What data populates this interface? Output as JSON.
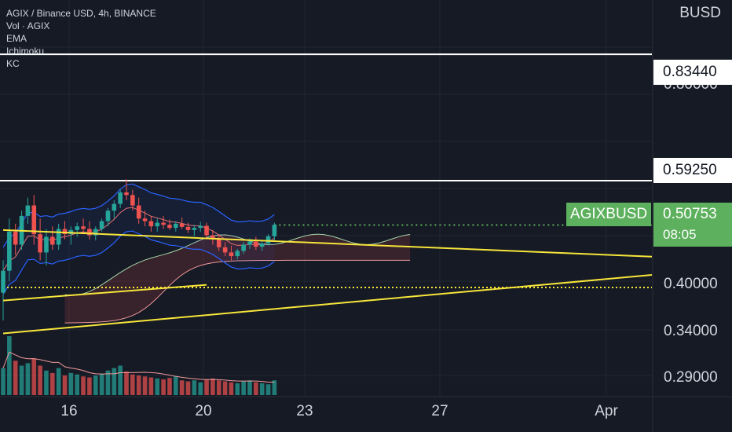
{
  "legend": {
    "title": "AGIX / Binance USD, 4h, BINANCE",
    "indicators": [
      "Vol · AGIX",
      "EMA",
      "Ichimoku",
      "KC"
    ]
  },
  "chart_data": {
    "type": "candlestick",
    "currency": "BUSD",
    "symbol": "AGIXBUSD",
    "last_price": "0.50753",
    "countdown": "08:05",
    "price_ticks": [
      {
        "value": 0.8,
        "label": "0.80000"
      },
      {
        "value": 0.4,
        "label": "0.40000"
      },
      {
        "value": 0.34,
        "label": "0.34000"
      },
      {
        "value": 0.29,
        "label": "0.29000"
      }
    ],
    "time_ticks": [
      {
        "bar": 10,
        "label": "16"
      },
      {
        "bar": 34,
        "label": "20"
      },
      {
        "bar": 52,
        "label": "23"
      },
      {
        "bar": 76,
        "label": "27"
      },
      {
        "bar": 106,
        "label": "Apr"
      }
    ],
    "horizontal_levels": [
      {
        "value": 0.8344,
        "label": "0.83440",
        "color": "#ffffff"
      },
      {
        "value": 0.5925,
        "label": "0.59250",
        "color": "#ffffff"
      }
    ],
    "support_level": {
      "value": 0.388,
      "from_bar": 0,
      "to_bar": 120,
      "color": "#f7e63a"
    },
    "ichimoku_hline": {
      "value": 0.3925,
      "from_bar": 0,
      "to_bar": 33,
      "color": "#f7e63a"
    },
    "trendlines": [
      {
        "from": [
          0,
          0.498
        ],
        "to": [
          120,
          0.447
        ],
        "color": "#f7e63a"
      },
      {
        "from": [
          0,
          0.3
        ],
        "to": [
          120,
          0.412
        ],
        "color": "#f7e63a"
      },
      {
        "from": [
          0,
          0.363
        ],
        "to": [
          33,
          0.393
        ],
        "color": "#f7e63a"
      }
    ],
    "ylim": [
      0.24,
      0.96
    ],
    "colors": {
      "up": "#26a69a",
      "down": "#ef5350",
      "background": "#161a25",
      "grid": "#232632"
    },
    "candles": [
      [
        0.378,
        0.44,
        0.325,
        0.42
      ],
      [
        0.42,
        0.52,
        0.4,
        0.495
      ],
      [
        0.495,
        0.51,
        0.45,
        0.47
      ],
      [
        0.47,
        0.535,
        0.46,
        0.525
      ],
      [
        0.525,
        0.56,
        0.51,
        0.545
      ],
      [
        0.545,
        0.565,
        0.47,
        0.49
      ],
      [
        0.49,
        0.52,
        0.44,
        0.455
      ],
      [
        0.455,
        0.5,
        0.43,
        0.485
      ],
      [
        0.485,
        0.505,
        0.46,
        0.47
      ],
      [
        0.47,
        0.51,
        0.46,
        0.5
      ],
      [
        0.5,
        0.515,
        0.48,
        0.49
      ],
      [
        0.49,
        0.505,
        0.47,
        0.498
      ],
      [
        0.498,
        0.512,
        0.485,
        0.505
      ],
      [
        0.505,
        0.52,
        0.49,
        0.5
      ],
      [
        0.5,
        0.515,
        0.48,
        0.488
      ],
      [
        0.488,
        0.505,
        0.478,
        0.5
      ],
      [
        0.5,
        0.52,
        0.495,
        0.515
      ],
      [
        0.515,
        0.54,
        0.505,
        0.535
      ],
      [
        0.535,
        0.555,
        0.52,
        0.548
      ],
      [
        0.548,
        0.575,
        0.54,
        0.57
      ],
      [
        0.57,
        0.595,
        0.555,
        0.565
      ],
      [
        0.565,
        0.575,
        0.535,
        0.545
      ],
      [
        0.545,
        0.56,
        0.51,
        0.52
      ],
      [
        0.52,
        0.535,
        0.505,
        0.515
      ],
      [
        0.515,
        0.525,
        0.495,
        0.505
      ],
      [
        0.505,
        0.52,
        0.495,
        0.512
      ],
      [
        0.512,
        0.525,
        0.5,
        0.508
      ],
      [
        0.508,
        0.518,
        0.498,
        0.502
      ],
      [
        0.502,
        0.515,
        0.495,
        0.51
      ],
      [
        0.51,
        0.522,
        0.5,
        0.504
      ],
      [
        0.504,
        0.512,
        0.492,
        0.498
      ],
      [
        0.498,
        0.508,
        0.486,
        0.502
      ],
      [
        0.502,
        0.514,
        0.494,
        0.506
      ],
      [
        0.506,
        0.512,
        0.482,
        0.488
      ],
      [
        0.488,
        0.498,
        0.47,
        0.48
      ],
      [
        0.48,
        0.49,
        0.458,
        0.465
      ],
      [
        0.465,
        0.475,
        0.448,
        0.455
      ],
      [
        0.455,
        0.468,
        0.44,
        0.448
      ],
      [
        0.448,
        0.462,
        0.442,
        0.458
      ],
      [
        0.458,
        0.475,
        0.452,
        0.47
      ],
      [
        0.47,
        0.482,
        0.462,
        0.476
      ],
      [
        0.476,
        0.485,
        0.46,
        0.466
      ],
      [
        0.466,
        0.478,
        0.458,
        0.472
      ],
      [
        0.472,
        0.49,
        0.468,
        0.486
      ],
      [
        0.486,
        0.512,
        0.478,
        0.508
      ]
    ],
    "volumes": [
      55,
      120,
      70,
      60,
      65,
      75,
      60,
      50,
      45,
      55,
      40,
      45,
      42,
      38,
      36,
      40,
      44,
      50,
      55,
      60,
      48,
      42,
      40,
      38,
      36,
      34,
      32,
      35,
      38,
      30,
      28,
      30,
      26,
      32,
      34,
      30,
      28,
      26,
      24,
      28,
      30,
      26,
      24,
      22,
      30
    ]
  }
}
